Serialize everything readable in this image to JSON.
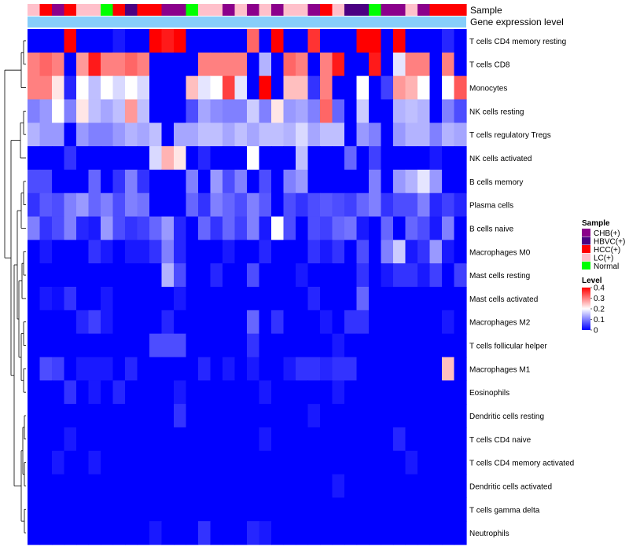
{
  "chart_data": {
    "type": "heatmap",
    "title": "",
    "annotation_labels": [
      "Sample",
      "Gene expression level"
    ],
    "rows": [
      "T cells CD4 memory resting",
      "T cells CD8",
      "Monocytes",
      "NK cells resting",
      "T cells regulatory  Tregs",
      "NK cells activated",
      "B cells memory",
      "Plasma cells",
      "B cells naive",
      "Macrophages M0",
      "Mast cells resting",
      "Mast cells activated",
      "Macrophages M2",
      "T cells follicular helper",
      "Macrophages M1",
      "Eosinophils",
      "Dendritic cells resting",
      "T cells CD4 naive",
      "T cells CD4 memory activated",
      "Dendritic cells activated",
      "T cells gamma delta",
      "Neutrophils"
    ],
    "sample_groups": [
      "LC(+)",
      "HCC(+)",
      "CHB(+)",
      "HCC(+)",
      "LC(+)",
      "LC(+)",
      "Normal",
      "HCC(+)",
      "HBVC(+)",
      "HCC(+)",
      "HCC(+)",
      "CHB(+)",
      "CHB(+)",
      "Normal",
      "LC(+)",
      "LC(+)",
      "CHB(+)",
      "LC(+)",
      "CHB(+)",
      "LC(+)",
      "CHB(+)",
      "LC(+)",
      "LC(+)",
      "CHB(+)",
      "HCC(+)",
      "LC(+)",
      "HBVC(+)",
      "HBVC(+)",
      "Normal",
      "CHB(+)",
      "CHB(+)",
      "LC(+)",
      "CHB(+)",
      "HCC(+)",
      "HCC(+)",
      "HCC(+)"
    ],
    "values": [
      [
        0.0,
        0.0,
        0.0,
        0.4,
        0.0,
        0.0,
        0.0,
        0.02,
        0.0,
        0.0,
        0.4,
        0.38,
        0.4,
        0.0,
        0.0,
        0.0,
        0.0,
        0.0,
        0.32,
        0.0,
        0.4,
        0.0,
        0.0,
        0.36,
        0.0,
        0.0,
        0.0,
        0.4,
        0.4,
        0.0,
        0.4,
        0.0,
        0.0,
        0.0,
        0.03,
        0.0
      ],
      [
        0.3,
        0.32,
        0.3,
        0.0,
        0.28,
        0.38,
        0.3,
        0.3,
        0.32,
        0.3,
        0.0,
        0.0,
        0.0,
        0.0,
        0.3,
        0.3,
        0.3,
        0.3,
        0.0,
        0.14,
        0.0,
        0.32,
        0.3,
        0.0,
        0.3,
        0.38,
        0.0,
        0.0,
        0.38,
        0.0,
        0.18,
        0.3,
        0.3,
        0.0,
        0.3,
        0.0
      ],
      [
        0.3,
        0.3,
        0.22,
        0.03,
        0.2,
        0.15,
        0.2,
        0.17,
        0.2,
        0.17,
        0.0,
        0.0,
        0.0,
        0.25,
        0.18,
        0.2,
        0.35,
        0.18,
        0.0,
        0.4,
        0.0,
        0.25,
        0.25,
        0.04,
        0.3,
        0.0,
        0.0,
        0.2,
        0.0,
        0.05,
        0.28,
        0.26,
        0.2,
        0.0,
        0.2,
        0.33
      ],
      [
        0.1,
        0.12,
        0.2,
        0.1,
        0.22,
        0.15,
        0.13,
        0.15,
        0.28,
        0.15,
        0.0,
        0.0,
        0.0,
        0.06,
        0.13,
        0.11,
        0.1,
        0.1,
        0.16,
        0.1,
        0.22,
        0.12,
        0.13,
        0.1,
        0.32,
        0.08,
        0.0,
        0.16,
        0.0,
        0.0,
        0.14,
        0.15,
        0.14,
        0.0,
        0.1,
        0.06
      ],
      [
        0.14,
        0.12,
        0.12,
        0.0,
        0.12,
        0.1,
        0.1,
        0.12,
        0.14,
        0.13,
        0.15,
        0.0,
        0.13,
        0.13,
        0.15,
        0.15,
        0.13,
        0.15,
        0.13,
        0.15,
        0.15,
        0.14,
        0.17,
        0.13,
        0.15,
        0.15,
        0.0,
        0.12,
        0.1,
        0.0,
        0.12,
        0.14,
        0.14,
        0.1,
        0.14,
        0.13
      ],
      [
        0.0,
        0.0,
        0.0,
        0.04,
        0.0,
        0.0,
        0.0,
        0.0,
        0.0,
        0.0,
        0.17,
        0.26,
        0.22,
        0.0,
        0.03,
        0.0,
        0.0,
        0.0,
        0.2,
        0.0,
        0.0,
        0.0,
        0.15,
        0.0,
        0.0,
        0.0,
        0.08,
        0.0,
        0.05,
        0.0,
        0.0,
        0.0,
        0.0,
        0.02,
        0.0,
        0.0
      ],
      [
        0.06,
        0.06,
        0.0,
        0.0,
        0.0,
        0.08,
        0.0,
        0.04,
        0.1,
        0.04,
        0.0,
        0.0,
        0.0,
        0.1,
        0.0,
        0.12,
        0.06,
        0.1,
        0.0,
        0.06,
        0.0,
        0.1,
        0.12,
        0.0,
        0.0,
        0.0,
        0.0,
        0.0,
        0.1,
        0.0,
        0.12,
        0.14,
        0.18,
        0.12,
        0.0,
        0.0
      ],
      [
        0.04,
        0.07,
        0.06,
        0.1,
        0.12,
        0.08,
        0.1,
        0.06,
        0.1,
        0.09,
        0.0,
        0.0,
        0.0,
        0.08,
        0.04,
        0.1,
        0.08,
        0.06,
        0.1,
        0.07,
        0.0,
        0.06,
        0.04,
        0.06,
        0.07,
        0.06,
        0.05,
        0.08,
        0.1,
        0.04,
        0.06,
        0.06,
        0.1,
        0.03,
        0.05,
        0.03
      ],
      [
        0.1,
        0.04,
        0.06,
        0.1,
        0.03,
        0.02,
        0.12,
        0.06,
        0.04,
        0.05,
        0.08,
        0.12,
        0.03,
        0.0,
        0.08,
        0.04,
        0.08,
        0.05,
        0.1,
        0.02,
        0.2,
        0.06,
        0.0,
        0.06,
        0.05,
        0.08,
        0.09,
        0.02,
        0.0,
        0.08,
        0.0,
        0.08,
        0.06,
        0.02,
        0.1,
        0.0
      ],
      [
        0.0,
        0.02,
        0.0,
        0.0,
        0.0,
        0.04,
        0.02,
        0.0,
        0.02,
        0.02,
        0.04,
        0.1,
        0.03,
        0.0,
        0.0,
        0.0,
        0.02,
        0.0,
        0.0,
        0.03,
        0.0,
        0.0,
        0.0,
        0.04,
        0.02,
        0.04,
        0.0,
        0.06,
        0.0,
        0.1,
        0.16,
        0.02,
        0.04,
        0.12,
        0.02,
        0.0
      ],
      [
        0.0,
        0.0,
        0.0,
        0.0,
        0.0,
        0.0,
        0.0,
        0.0,
        0.0,
        0.0,
        0.0,
        0.14,
        0.06,
        0.0,
        0.0,
        0.03,
        0.0,
        0.0,
        0.06,
        0.0,
        0.0,
        0.0,
        0.02,
        0.0,
        0.0,
        0.0,
        0.0,
        0.04,
        0.0,
        0.02,
        0.04,
        0.04,
        0.02,
        0.05,
        0.0,
        0.05
      ],
      [
        0.0,
        0.02,
        0.01,
        0.04,
        0.0,
        0.0,
        0.02,
        0.0,
        0.0,
        0.0,
        0.0,
        0.0,
        0.02,
        0.0,
        0.0,
        0.0,
        0.0,
        0.0,
        0.0,
        0.0,
        0.0,
        0.0,
        0.0,
        0.03,
        0.0,
        0.0,
        0.0,
        0.08,
        0.0,
        0.0,
        0.0,
        0.0,
        0.0,
        0.0,
        0.0,
        0.0
      ],
      [
        0.0,
        0.0,
        0.0,
        0.0,
        0.03,
        0.05,
        0.02,
        0.0,
        0.0,
        0.0,
        0.0,
        0.03,
        0.0,
        0.0,
        0.0,
        0.0,
        0.0,
        0.0,
        0.08,
        0.0,
        0.04,
        0.0,
        0.0,
        0.0,
        0.02,
        0.0,
        0.04,
        0.04,
        0.0,
        0.0,
        0.0,
        0.0,
        0.0,
        0.0,
        0.02,
        0.0
      ],
      [
        0.0,
        0.0,
        0.0,
        0.0,
        0.0,
        0.0,
        0.0,
        0.0,
        0.0,
        0.0,
        0.06,
        0.06,
        0.06,
        0.0,
        0.0,
        0.0,
        0.0,
        0.0,
        0.04,
        0.0,
        0.0,
        0.0,
        0.0,
        0.0,
        0.0,
        0.02,
        0.0,
        0.0,
        0.0,
        0.0,
        0.0,
        0.0,
        0.0,
        0.0,
        0.0,
        0.0
      ],
      [
        0.0,
        0.06,
        0.05,
        0.0,
        0.02,
        0.02,
        0.02,
        0.0,
        0.03,
        0.0,
        0.0,
        0.0,
        0.0,
        0.0,
        0.03,
        0.0,
        0.02,
        0.0,
        0.02,
        0.0,
        0.0,
        0.02,
        0.04,
        0.04,
        0.03,
        0.04,
        0.04,
        0.0,
        0.0,
        0.0,
        0.0,
        0.0,
        0.0,
        0.0,
        0.25,
        0.0
      ],
      [
        0.0,
        0.0,
        0.0,
        0.04,
        0.0,
        0.02,
        0.0,
        0.03,
        0.0,
        0.0,
        0.0,
        0.0,
        0.02,
        0.0,
        0.0,
        0.0,
        0.0,
        0.0,
        0.0,
        0.02,
        0.0,
        0.0,
        0.0,
        0.0,
        0.0,
        0.02,
        0.0,
        0.0,
        0.0,
        0.0,
        0.0,
        0.0,
        0.0,
        0.0,
        0.0,
        0.0
      ],
      [
        0.0,
        0.0,
        0.0,
        0.0,
        0.0,
        0.0,
        0.0,
        0.0,
        0.0,
        0.0,
        0.0,
        0.0,
        0.04,
        0.0,
        0.0,
        0.0,
        0.0,
        0.0,
        0.0,
        0.0,
        0.0,
        0.0,
        0.0,
        0.02,
        0.0,
        0.0,
        0.0,
        0.0,
        0.0,
        0.0,
        0.0,
        0.0,
        0.0,
        0.0,
        0.0,
        0.0
      ],
      [
        0.0,
        0.0,
        0.0,
        0.02,
        0.0,
        0.0,
        0.0,
        0.0,
        0.0,
        0.0,
        0.0,
        0.0,
        0.0,
        0.0,
        0.0,
        0.0,
        0.0,
        0.0,
        0.0,
        0.02,
        0.0,
        0.0,
        0.0,
        0.0,
        0.0,
        0.0,
        0.0,
        0.0,
        0.0,
        0.0,
        0.03,
        0.0,
        0.0,
        0.0,
        0.0,
        0.0
      ],
      [
        0.0,
        0.0,
        0.02,
        0.0,
        0.0,
        0.02,
        0.0,
        0.0,
        0.0,
        0.0,
        0.0,
        0.0,
        0.0,
        0.0,
        0.0,
        0.0,
        0.0,
        0.0,
        0.0,
        0.0,
        0.0,
        0.0,
        0.0,
        0.0,
        0.0,
        0.0,
        0.0,
        0.0,
        0.0,
        0.0,
        0.0,
        0.02,
        0.0,
        0.0,
        0.0,
        0.0
      ],
      [
        0.0,
        0.0,
        0.0,
        0.0,
        0.0,
        0.0,
        0.0,
        0.0,
        0.0,
        0.0,
        0.0,
        0.0,
        0.0,
        0.0,
        0.0,
        0.0,
        0.0,
        0.0,
        0.0,
        0.0,
        0.0,
        0.0,
        0.0,
        0.0,
        0.0,
        0.02,
        0.0,
        0.0,
        0.0,
        0.0,
        0.0,
        0.0,
        0.0,
        0.0,
        0.0,
        0.0
      ],
      [
        0.0,
        0.0,
        0.0,
        0.0,
        0.0,
        0.0,
        0.0,
        0.0,
        0.0,
        0.0,
        0.0,
        0.0,
        0.0,
        0.0,
        0.0,
        0.0,
        0.0,
        0.0,
        0.0,
        0.0,
        0.0,
        0.0,
        0.0,
        0.0,
        0.0,
        0.0,
        0.0,
        0.0,
        0.0,
        0.0,
        0.0,
        0.0,
        0.0,
        0.0,
        0.0,
        0.0
      ],
      [
        0.0,
        0.0,
        0.0,
        0.0,
        0.0,
        0.0,
        0.0,
        0.0,
        0.0,
        0.0,
        0.02,
        0.0,
        0.0,
        0.0,
        0.04,
        0.0,
        0.0,
        0.0,
        0.03,
        0.02,
        0.0,
        0.0,
        0.0,
        0.0,
        0.0,
        0.0,
        0.0,
        0.0,
        0.0,
        0.0,
        0.0,
        0.0,
        0.0,
        0.0,
        0.0,
        0.0
      ]
    ],
    "color_scale": {
      "min": 0,
      "max": 0.4,
      "low": "#0000ff",
      "mid": "#ffffff",
      "high": "#ff0000"
    },
    "legend": {
      "sample": {
        "title": "Sample",
        "items": [
          {
            "label": "CHB(+)",
            "color": "#8b008b"
          },
          {
            "label": "HBVC(+)",
            "color": "#4b0082"
          },
          {
            "label": "HCC(+)",
            "color": "#ff0000"
          },
          {
            "label": "LC(+)",
            "color": "#ffc0cb"
          },
          {
            "label": "Normal",
            "color": "#00ff00"
          }
        ]
      },
      "level": {
        "title": "Level",
        "ticks": [
          "0.4",
          "0.3",
          "0.2",
          "0.1",
          "0"
        ],
        "tick_values": [
          0.4,
          0.3,
          0.2,
          0.1,
          0
        ]
      }
    },
    "gene_expression_color": "#87cefa"
  }
}
